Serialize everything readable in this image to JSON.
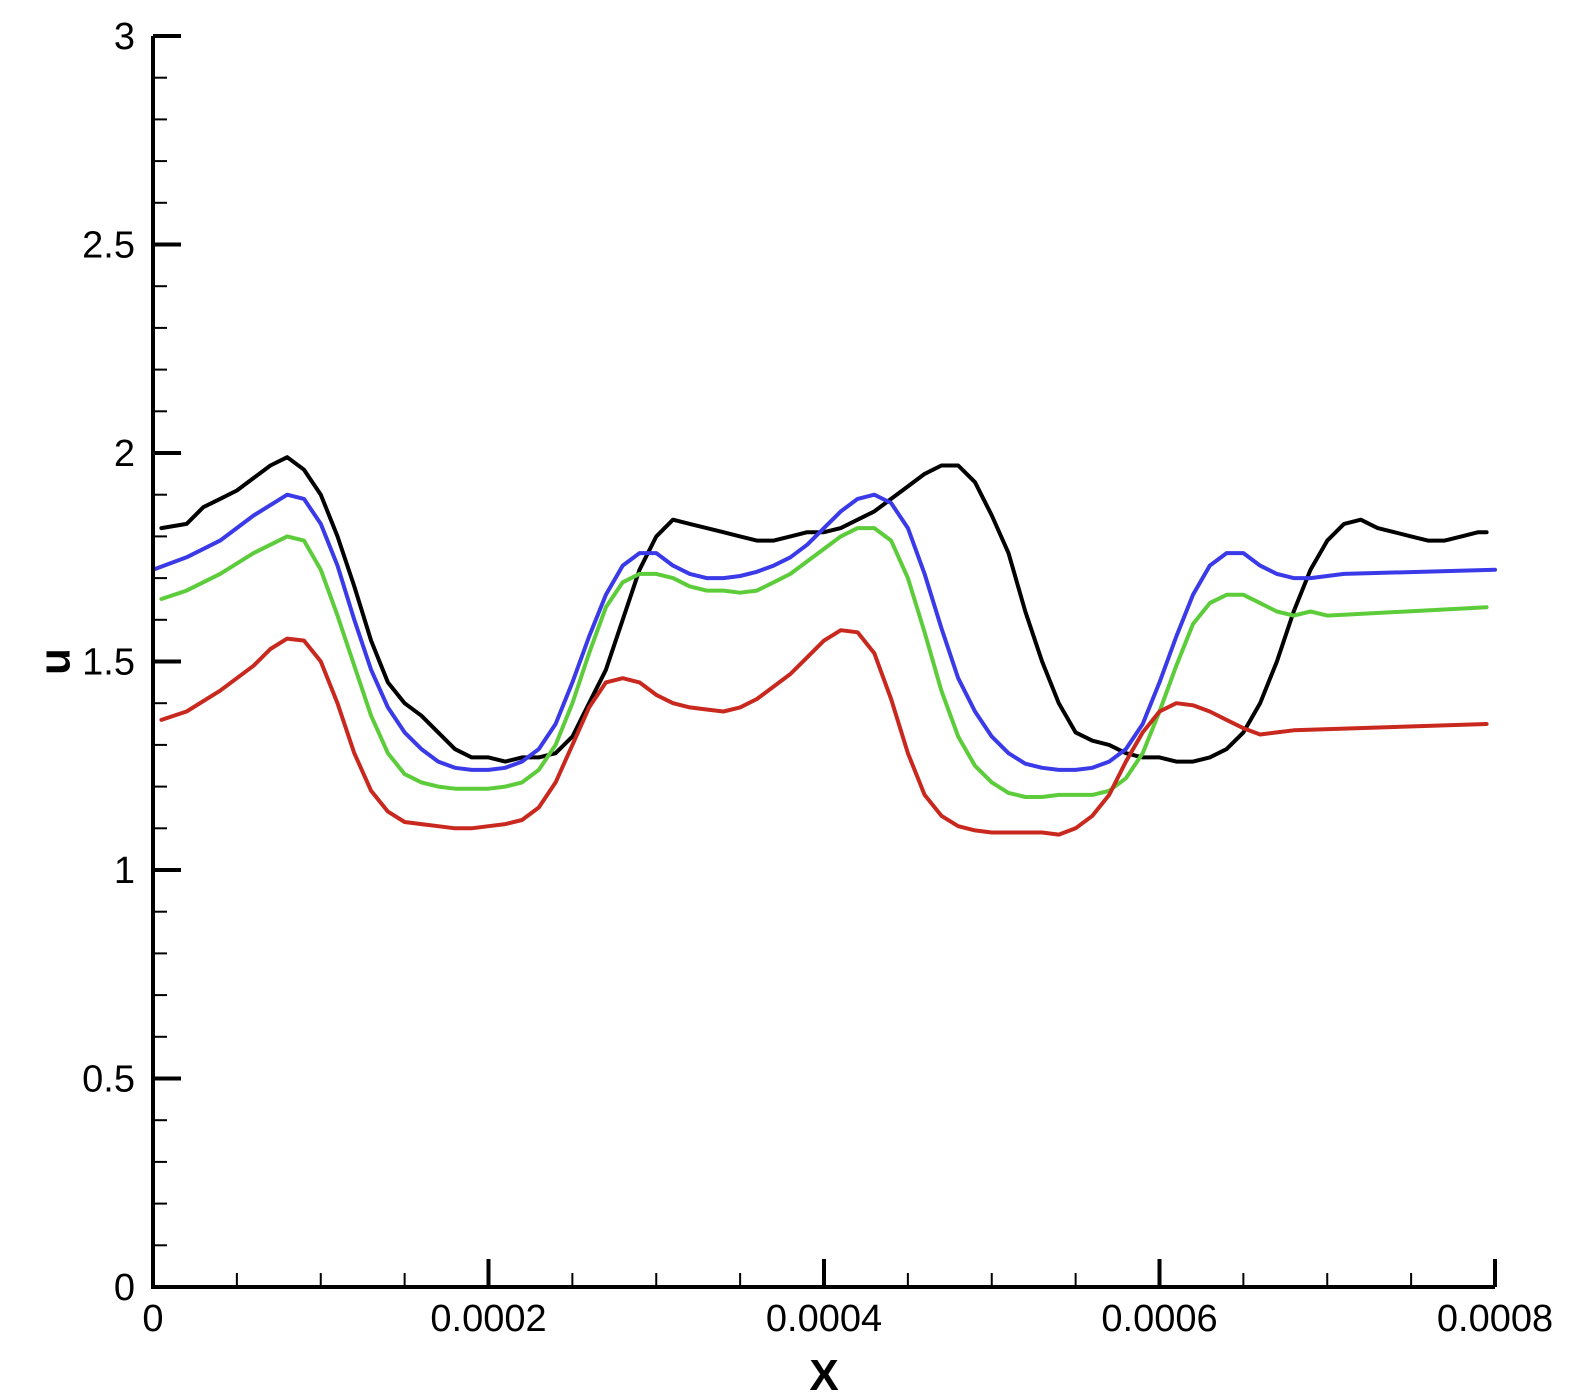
{
  "chart_data": {
    "type": "line",
    "xlabel": "X",
    "ylabel": "u",
    "xlim": [
      0,
      0.0008
    ],
    "ylim": [
      0,
      3
    ],
    "x_ticks": [
      {
        "value": 0,
        "label": "0"
      },
      {
        "value": 0.0002,
        "label": "0.0002"
      },
      {
        "value": 0.0004,
        "label": "0.0004"
      },
      {
        "value": 0.0006,
        "label": "0.0006"
      },
      {
        "value": 0.0008,
        "label": "0.0008"
      }
    ],
    "y_ticks": [
      {
        "value": 0,
        "label": "0"
      },
      {
        "value": 0.5,
        "label": "0.5"
      },
      {
        "value": 1,
        "label": "1"
      },
      {
        "value": 1.5,
        "label": "1.5"
      },
      {
        "value": 2,
        "label": "2"
      },
      {
        "value": 2.5,
        "label": "2.5"
      },
      {
        "value": 3,
        "label": "3"
      }
    ],
    "x_minor_step": 5e-05,
    "y_minor_step": 0.1,
    "grid": false,
    "legend": "none",
    "series": [
      {
        "color": "#000000",
        "points": [
          [
            5e-06,
            1.82
          ],
          [
            2e-05,
            1.83
          ],
          [
            3e-05,
            1.87
          ],
          [
            4e-05,
            1.89
          ],
          [
            5e-05,
            1.91
          ],
          [
            6e-05,
            1.94
          ],
          [
            7e-05,
            1.97
          ],
          [
            8e-05,
            1.99
          ],
          [
            9e-05,
            1.96
          ],
          [
            0.0001,
            1.9
          ],
          [
            0.00011,
            1.8
          ],
          [
            0.00012,
            1.68
          ],
          [
            0.00013,
            1.55
          ],
          [
            0.00014,
            1.45
          ],
          [
            0.00015,
            1.4
          ],
          [
            0.00016,
            1.37
          ],
          [
            0.00017,
            1.33
          ],
          [
            0.00018,
            1.29
          ],
          [
            0.00019,
            1.27
          ],
          [
            0.0002,
            1.27
          ],
          [
            0.00021,
            1.26
          ],
          [
            0.00022,
            1.27
          ],
          [
            0.00023,
            1.27
          ],
          [
            0.00024,
            1.28
          ],
          [
            0.00025,
            1.32
          ],
          [
            0.00026,
            1.4
          ],
          [
            0.00027,
            1.48
          ],
          [
            0.00028,
            1.6
          ],
          [
            0.00029,
            1.72
          ],
          [
            0.0003,
            1.8
          ],
          [
            0.00031,
            1.84
          ],
          [
            0.00032,
            1.83
          ],
          [
            0.00033,
            1.82
          ],
          [
            0.00034,
            1.81
          ],
          [
            0.00035,
            1.8
          ],
          [
            0.00036,
            1.79
          ],
          [
            0.00037,
            1.79
          ],
          [
            0.00038,
            1.8
          ],
          [
            0.00039,
            1.81
          ],
          [
            0.0004,
            1.81
          ],
          [
            0.00041,
            1.82
          ],
          [
            0.00042,
            1.84
          ],
          [
            0.00043,
            1.86
          ],
          [
            0.00044,
            1.89
          ],
          [
            0.00045,
            1.92
          ],
          [
            0.00046,
            1.95
          ],
          [
            0.00047,
            1.97
          ],
          [
            0.00048,
            1.97
          ],
          [
            0.00049,
            1.93
          ],
          [
            0.0005,
            1.85
          ],
          [
            0.00051,
            1.76
          ],
          [
            0.00052,
            1.62
          ],
          [
            0.00053,
            1.5
          ],
          [
            0.00054,
            1.4
          ],
          [
            0.00055,
            1.33
          ],
          [
            0.00056,
            1.31
          ],
          [
            0.00057,
            1.3
          ],
          [
            0.00058,
            1.28
          ],
          [
            0.00059,
            1.27
          ],
          [
            0.0006,
            1.27
          ],
          [
            0.00061,
            1.26
          ],
          [
            0.00062,
            1.26
          ],
          [
            0.00063,
            1.27
          ],
          [
            0.00064,
            1.29
          ],
          [
            0.00065,
            1.33
          ],
          [
            0.00066,
            1.4
          ],
          [
            0.00067,
            1.5
          ],
          [
            0.00068,
            1.62
          ],
          [
            0.00069,
            1.72
          ],
          [
            0.0007,
            1.79
          ],
          [
            0.00071,
            1.83
          ],
          [
            0.00072,
            1.84
          ],
          [
            0.00073,
            1.82
          ],
          [
            0.00074,
            1.81
          ],
          [
            0.00075,
            1.8
          ],
          [
            0.00076,
            1.79
          ],
          [
            0.00077,
            1.79
          ],
          [
            0.00078,
            1.8
          ],
          [
            0.00079,
            1.81
          ],
          [
            0.000795,
            1.81
          ]
        ]
      },
      {
        "color": "#3a3ae8",
        "points": [
          [
            0,
            1.72
          ],
          [
            2e-05,
            1.75
          ],
          [
            4e-05,
            1.79
          ],
          [
            6e-05,
            1.85
          ],
          [
            8e-05,
            1.9
          ],
          [
            9e-05,
            1.89
          ],
          [
            0.0001,
            1.83
          ],
          [
            0.00011,
            1.73
          ],
          [
            0.00012,
            1.6
          ],
          [
            0.00013,
            1.48
          ],
          [
            0.00014,
            1.39
          ],
          [
            0.00015,
            1.33
          ],
          [
            0.00016,
            1.29
          ],
          [
            0.00017,
            1.26
          ],
          [
            0.00018,
            1.245
          ],
          [
            0.00019,
            1.24
          ],
          [
            0.0002,
            1.24
          ],
          [
            0.00021,
            1.245
          ],
          [
            0.00022,
            1.26
          ],
          [
            0.00023,
            1.29
          ],
          [
            0.00024,
            1.35
          ],
          [
            0.00025,
            1.45
          ],
          [
            0.00026,
            1.56
          ],
          [
            0.00027,
            1.66
          ],
          [
            0.00028,
            1.73
          ],
          [
            0.00029,
            1.76
          ],
          [
            0.0003,
            1.76
          ],
          [
            0.00031,
            1.73
          ],
          [
            0.00032,
            1.71
          ],
          [
            0.00033,
            1.7
          ],
          [
            0.00034,
            1.7
          ],
          [
            0.00035,
            1.705
          ],
          [
            0.00036,
            1.715
          ],
          [
            0.00037,
            1.73
          ],
          [
            0.00038,
            1.75
          ],
          [
            0.00039,
            1.78
          ],
          [
            0.0004,
            1.82
          ],
          [
            0.00041,
            1.86
          ],
          [
            0.00042,
            1.89
          ],
          [
            0.00043,
            1.9
          ],
          [
            0.00044,
            1.88
          ],
          [
            0.00045,
            1.82
          ],
          [
            0.00046,
            1.71
          ],
          [
            0.00047,
            1.58
          ],
          [
            0.00048,
            1.46
          ],
          [
            0.00049,
            1.38
          ],
          [
            0.0005,
            1.32
          ],
          [
            0.00051,
            1.28
          ],
          [
            0.00052,
            1.255
          ],
          [
            0.00053,
            1.245
          ],
          [
            0.00054,
            1.24
          ],
          [
            0.00055,
            1.24
          ],
          [
            0.00056,
            1.245
          ],
          [
            0.00057,
            1.26
          ],
          [
            0.00058,
            1.29
          ],
          [
            0.00059,
            1.35
          ],
          [
            0.0006,
            1.45
          ],
          [
            0.00061,
            1.56
          ],
          [
            0.00062,
            1.66
          ],
          [
            0.00063,
            1.73
          ],
          [
            0.00064,
            1.76
          ],
          [
            0.00065,
            1.76
          ],
          [
            0.00066,
            1.73
          ],
          [
            0.00067,
            1.71
          ],
          [
            0.00068,
            1.7
          ],
          [
            0.00069,
            1.7
          ],
          [
            0.0007,
            1.705
          ],
          [
            0.00071,
            1.71
          ],
          [
            0.0008,
            1.72
          ]
        ]
      },
      {
        "color": "#5ccc3a",
        "points": [
          [
            5e-06,
            1.65
          ],
          [
            2e-05,
            1.67
          ],
          [
            4e-05,
            1.71
          ],
          [
            6e-05,
            1.76
          ],
          [
            8e-05,
            1.8
          ],
          [
            9e-05,
            1.79
          ],
          [
            0.0001,
            1.72
          ],
          [
            0.00011,
            1.61
          ],
          [
            0.00012,
            1.49
          ],
          [
            0.00013,
            1.37
          ],
          [
            0.00014,
            1.28
          ],
          [
            0.00015,
            1.23
          ],
          [
            0.00016,
            1.21
          ],
          [
            0.00017,
            1.2
          ],
          [
            0.00018,
            1.195
          ],
          [
            0.00019,
            1.195
          ],
          [
            0.0002,
            1.195
          ],
          [
            0.00021,
            1.2
          ],
          [
            0.00022,
            1.21
          ],
          [
            0.00023,
            1.24
          ],
          [
            0.00024,
            1.3
          ],
          [
            0.00025,
            1.4
          ],
          [
            0.00026,
            1.52
          ],
          [
            0.00027,
            1.63
          ],
          [
            0.00028,
            1.69
          ],
          [
            0.00029,
            1.71
          ],
          [
            0.0003,
            1.71
          ],
          [
            0.00031,
            1.7
          ],
          [
            0.00032,
            1.68
          ],
          [
            0.00033,
            1.67
          ],
          [
            0.00034,
            1.67
          ],
          [
            0.00035,
            1.665
          ],
          [
            0.00036,
            1.67
          ],
          [
            0.00037,
            1.69
          ],
          [
            0.00038,
            1.71
          ],
          [
            0.00039,
            1.74
          ],
          [
            0.0004,
            1.77
          ],
          [
            0.00041,
            1.8
          ],
          [
            0.00042,
            1.82
          ],
          [
            0.00043,
            1.82
          ],
          [
            0.00044,
            1.79
          ],
          [
            0.00045,
            1.7
          ],
          [
            0.00046,
            1.57
          ],
          [
            0.00047,
            1.43
          ],
          [
            0.00048,
            1.32
          ],
          [
            0.00049,
            1.25
          ],
          [
            0.0005,
            1.21
          ],
          [
            0.00051,
            1.185
          ],
          [
            0.00052,
            1.175
          ],
          [
            0.00053,
            1.175
          ],
          [
            0.00054,
            1.18
          ],
          [
            0.00055,
            1.18
          ],
          [
            0.00056,
            1.18
          ],
          [
            0.00057,
            1.19
          ],
          [
            0.00058,
            1.22
          ],
          [
            0.00059,
            1.28
          ],
          [
            0.0006,
            1.38
          ],
          [
            0.00061,
            1.49
          ],
          [
            0.00062,
            1.59
          ],
          [
            0.00063,
            1.64
          ],
          [
            0.00064,
            1.66
          ],
          [
            0.00065,
            1.66
          ],
          [
            0.00066,
            1.64
          ],
          [
            0.00067,
            1.62
          ],
          [
            0.00068,
            1.61
          ],
          [
            0.00069,
            1.62
          ],
          [
            0.0007,
            1.61
          ],
          [
            0.000795,
            1.63
          ]
        ]
      },
      {
        "color": "#c8281e",
        "points": [
          [
            5e-06,
            1.36
          ],
          [
            2e-05,
            1.38
          ],
          [
            4e-05,
            1.43
          ],
          [
            6e-05,
            1.49
          ],
          [
            7e-05,
            1.53
          ],
          [
            8e-05,
            1.555
          ],
          [
            9e-05,
            1.55
          ],
          [
            0.0001,
            1.5
          ],
          [
            0.00011,
            1.4
          ],
          [
            0.00012,
            1.28
          ],
          [
            0.00013,
            1.19
          ],
          [
            0.00014,
            1.14
          ],
          [
            0.00015,
            1.115
          ],
          [
            0.00016,
            1.11
          ],
          [
            0.00017,
            1.105
          ],
          [
            0.00018,
            1.1
          ],
          [
            0.00019,
            1.1
          ],
          [
            0.0002,
            1.105
          ],
          [
            0.00021,
            1.11
          ],
          [
            0.00022,
            1.12
          ],
          [
            0.00023,
            1.15
          ],
          [
            0.00024,
            1.21
          ],
          [
            0.00025,
            1.3
          ],
          [
            0.00026,
            1.39
          ],
          [
            0.00027,
            1.45
          ],
          [
            0.00028,
            1.46
          ],
          [
            0.00029,
            1.45
          ],
          [
            0.0003,
            1.42
          ],
          [
            0.00031,
            1.4
          ],
          [
            0.00032,
            1.39
          ],
          [
            0.00033,
            1.385
          ],
          [
            0.00034,
            1.38
          ],
          [
            0.00035,
            1.39
          ],
          [
            0.00036,
            1.41
          ],
          [
            0.00037,
            1.44
          ],
          [
            0.00038,
            1.47
          ],
          [
            0.00039,
            1.51
          ],
          [
            0.0004,
            1.55
          ],
          [
            0.00041,
            1.575
          ],
          [
            0.00042,
            1.57
          ],
          [
            0.00043,
            1.52
          ],
          [
            0.00044,
            1.41
          ],
          [
            0.00045,
            1.28
          ],
          [
            0.00046,
            1.18
          ],
          [
            0.00047,
            1.13
          ],
          [
            0.00048,
            1.105
          ],
          [
            0.00049,
            1.095
          ],
          [
            0.0005,
            1.09
          ],
          [
            0.00051,
            1.09
          ],
          [
            0.00052,
            1.09
          ],
          [
            0.00053,
            1.09
          ],
          [
            0.00054,
            1.085
          ],
          [
            0.00055,
            1.1
          ],
          [
            0.00056,
            1.13
          ],
          [
            0.00057,
            1.18
          ],
          [
            0.00058,
            1.26
          ],
          [
            0.00059,
            1.33
          ],
          [
            0.0006,
            1.38
          ],
          [
            0.00061,
            1.4
          ],
          [
            0.00062,
            1.395
          ],
          [
            0.00063,
            1.38
          ],
          [
            0.00064,
            1.36
          ],
          [
            0.00065,
            1.34
          ],
          [
            0.00066,
            1.325
          ],
          [
            0.00067,
            1.33
          ],
          [
            0.00068,
            1.335
          ],
          [
            0.000795,
            1.35
          ]
        ]
      }
    ]
  }
}
